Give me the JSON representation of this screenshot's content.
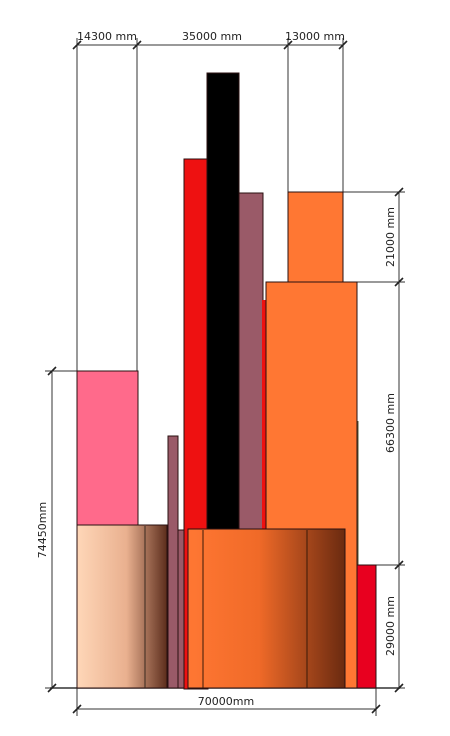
{
  "dimensions": {
    "top": [
      "14300 mm",
      "35000 mm",
      "13000 mm"
    ],
    "right": [
      "21000 mm",
      "66300 mm",
      "29000 mm"
    ],
    "left": "74450mm",
    "bottom": "70000mm"
  },
  "colors": {
    "light_peach": "#ffd7b8",
    "pink": "#ff6a8b",
    "mauve": "#9a5a68",
    "red": "#ee1111",
    "black": "#000000",
    "orange": "#ff7733",
    "dark_red": "#e8001f"
  }
}
